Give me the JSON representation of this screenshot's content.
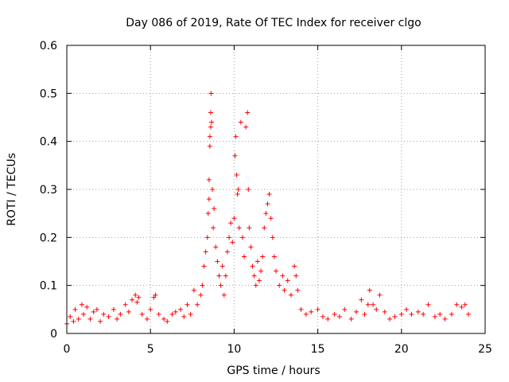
{
  "chart_data": {
    "type": "scatter",
    "title": "Day 086 of 2019, Rate Of TEC Index for receiver clgo",
    "xlabel": "GPS time / hours",
    "ylabel": "ROTI / TECUs",
    "xlim": [
      0,
      25
    ],
    "ylim": [
      0,
      0.6
    ],
    "x_ticks": [
      0,
      5,
      10,
      15,
      20,
      25
    ],
    "x_tick_labels": [
      "0",
      "5",
      "10",
      "15",
      "20",
      "25"
    ],
    "y_ticks": [
      0,
      0.1,
      0.2,
      0.3,
      0.4,
      0.5,
      0.6
    ],
    "y_tick_labels": [
      "0",
      "0.1",
      "0.2",
      "0.3",
      "0.4",
      "0.5",
      "0.6"
    ],
    "grid": true,
    "marker": "+",
    "color": "#ff0000",
    "series": [
      {
        "name": "ROTI",
        "points": [
          [
            0.0,
            0.02
          ],
          [
            0.2,
            0.035
          ],
          [
            0.4,
            0.025
          ],
          [
            0.5,
            0.05
          ],
          [
            0.7,
            0.03
          ],
          [
            0.9,
            0.06
          ],
          [
            1.0,
            0.04
          ],
          [
            1.2,
            0.055
          ],
          [
            1.4,
            0.03
          ],
          [
            1.6,
            0.045
          ],
          [
            1.8,
            0.05
          ],
          [
            2.0,
            0.025
          ],
          [
            2.2,
            0.04
          ],
          [
            2.5,
            0.035
          ],
          [
            2.8,
            0.05
          ],
          [
            3.0,
            0.03
          ],
          [
            3.2,
            0.04
          ],
          [
            3.5,
            0.06
          ],
          [
            3.7,
            0.045
          ],
          [
            3.9,
            0.07
          ],
          [
            4.1,
            0.08
          ],
          [
            4.2,
            0.065
          ],
          [
            4.3,
            0.075
          ],
          [
            4.5,
            0.04
          ],
          [
            4.8,
            0.03
          ],
          [
            5.0,
            0.05
          ],
          [
            5.2,
            0.075
          ],
          [
            5.3,
            0.08
          ],
          [
            5.5,
            0.04
          ],
          [
            5.8,
            0.03
          ],
          [
            6.0,
            0.025
          ],
          [
            6.3,
            0.04
          ],
          [
            6.5,
            0.045
          ],
          [
            6.8,
            0.05
          ],
          [
            7.0,
            0.035
          ],
          [
            7.2,
            0.06
          ],
          [
            7.4,
            0.04
          ],
          [
            7.6,
            0.09
          ],
          [
            7.8,
            0.06
          ],
          [
            8.0,
            0.08
          ],
          [
            8.1,
            0.1
          ],
          [
            8.2,
            0.14
          ],
          [
            8.3,
            0.17
          ],
          [
            8.4,
            0.2
          ],
          [
            8.45,
            0.25
          ],
          [
            8.5,
            0.28
          ],
          [
            8.5,
            0.32
          ],
          [
            8.55,
            0.39
          ],
          [
            8.55,
            0.41
          ],
          [
            8.6,
            0.43
          ],
          [
            8.6,
            0.46
          ],
          [
            8.62,
            0.5
          ],
          [
            8.65,
            0.44
          ],
          [
            8.7,
            0.3
          ],
          [
            8.75,
            0.22
          ],
          [
            8.8,
            0.26
          ],
          [
            8.9,
            0.18
          ],
          [
            9.0,
            0.15
          ],
          [
            9.1,
            0.12
          ],
          [
            9.2,
            0.1
          ],
          [
            9.3,
            0.14
          ],
          [
            9.4,
            0.08
          ],
          [
            9.5,
            0.12
          ],
          [
            9.6,
            0.17
          ],
          [
            9.7,
            0.2
          ],
          [
            9.8,
            0.23
          ],
          [
            9.9,
            0.19
          ],
          [
            10.0,
            0.24
          ],
          [
            10.05,
            0.37
          ],
          [
            10.1,
            0.41
          ],
          [
            10.15,
            0.33
          ],
          [
            10.2,
            0.29
          ],
          [
            10.25,
            0.3
          ],
          [
            10.3,
            0.22
          ],
          [
            10.4,
            0.44
          ],
          [
            10.5,
            0.2
          ],
          [
            10.6,
            0.16
          ],
          [
            10.7,
            0.43
          ],
          [
            10.8,
            0.46
          ],
          [
            10.85,
            0.3
          ],
          [
            10.9,
            0.22
          ],
          [
            11.0,
            0.18
          ],
          [
            11.1,
            0.14
          ],
          [
            11.2,
            0.12
          ],
          [
            11.3,
            0.1
          ],
          [
            11.4,
            0.15
          ],
          [
            11.5,
            0.11
          ],
          [
            11.6,
            0.13
          ],
          [
            11.7,
            0.16
          ],
          [
            11.8,
            0.22
          ],
          [
            11.9,
            0.25
          ],
          [
            12.0,
            0.27
          ],
          [
            12.1,
            0.29
          ],
          [
            12.2,
            0.24
          ],
          [
            12.3,
            0.2
          ],
          [
            12.4,
            0.16
          ],
          [
            12.5,
            0.13
          ],
          [
            12.7,
            0.1
          ],
          [
            12.9,
            0.12
          ],
          [
            13.0,
            0.09
          ],
          [
            13.2,
            0.11
          ],
          [
            13.4,
            0.08
          ],
          [
            13.6,
            0.14
          ],
          [
            13.7,
            0.12
          ],
          [
            13.8,
            0.09
          ],
          [
            14.0,
            0.05
          ],
          [
            14.3,
            0.04
          ],
          [
            14.6,
            0.045
          ],
          [
            15.0,
            0.05
          ],
          [
            15.3,
            0.035
          ],
          [
            15.6,
            0.03
          ],
          [
            16.0,
            0.04
          ],
          [
            16.3,
            0.035
          ],
          [
            16.6,
            0.05
          ],
          [
            17.0,
            0.03
          ],
          [
            17.3,
            0.045
          ],
          [
            17.6,
            0.07
          ],
          [
            17.8,
            0.04
          ],
          [
            18.0,
            0.06
          ],
          [
            18.1,
            0.09
          ],
          [
            18.3,
            0.06
          ],
          [
            18.5,
            0.05
          ],
          [
            18.7,
            0.08
          ],
          [
            19.0,
            0.045
          ],
          [
            19.3,
            0.03
          ],
          [
            19.6,
            0.035
          ],
          [
            20.0,
            0.04
          ],
          [
            20.3,
            0.05
          ],
          [
            20.6,
            0.04
          ],
          [
            21.0,
            0.045
          ],
          [
            21.3,
            0.04
          ],
          [
            21.6,
            0.06
          ],
          [
            22.0,
            0.035
          ],
          [
            22.3,
            0.04
          ],
          [
            22.6,
            0.03
          ],
          [
            23.0,
            0.04
          ],
          [
            23.3,
            0.06
          ],
          [
            23.6,
            0.055
          ],
          [
            23.8,
            0.06
          ],
          [
            24.0,
            0.04
          ]
        ]
      }
    ]
  }
}
